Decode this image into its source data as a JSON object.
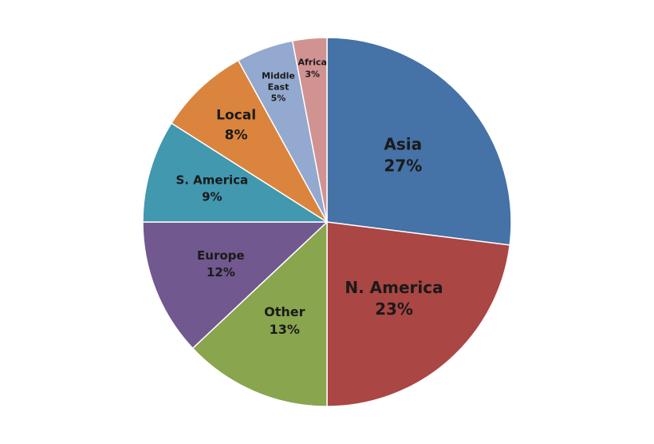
{
  "chart_data": {
    "type": "pie",
    "title": "",
    "start_angle_deg": 0,
    "direction": "clockwise",
    "slices": [
      {
        "label": "Asia",
        "value": 27,
        "value_label": "27%",
        "color": "#4572A7"
      },
      {
        "label": "N. America",
        "value": 23,
        "value_label": "23%",
        "color": "#AA4643"
      },
      {
        "label": "Other",
        "value": 13,
        "value_label": "13%",
        "color": "#89A54E"
      },
      {
        "label": "Europe",
        "value": 12,
        "value_label": "12%",
        "color": "#71588F"
      },
      {
        "label": "S. America",
        "value": 9,
        "value_label": "9%",
        "color": "#4198AF"
      },
      {
        "label": "Local",
        "value": 8,
        "value_label": "8%",
        "color": "#DB843D"
      },
      {
        "label": "Middle East",
        "value": 5,
        "value_label": "5%",
        "color": "#93A9CF"
      },
      {
        "label": "Africa",
        "value": 3,
        "value_label": "3%",
        "color": "#D19392"
      }
    ],
    "legend": "none"
  }
}
